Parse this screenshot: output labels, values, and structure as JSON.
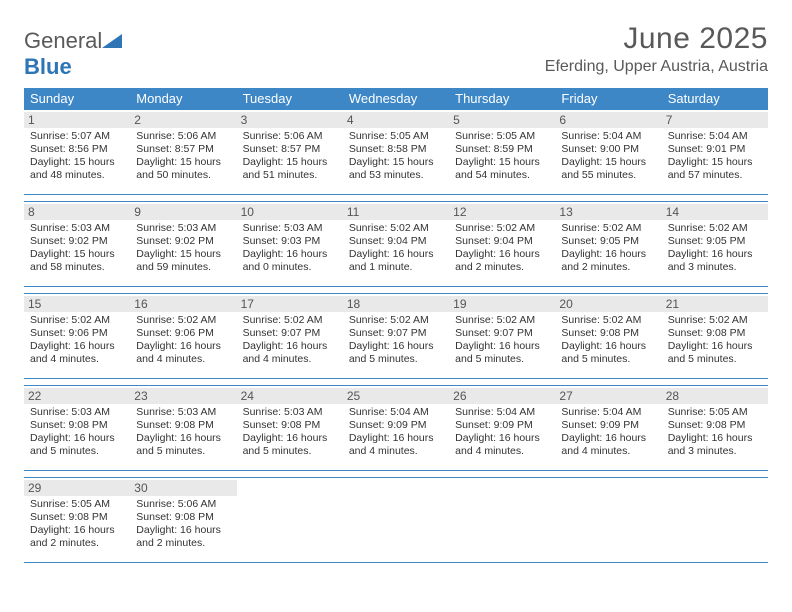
{
  "logo": {
    "text1": "General",
    "text2": "Blue"
  },
  "title": "June 2025",
  "location": "Eferding, Upper Austria, Austria",
  "colors": {
    "header_bg": "#3d87c7",
    "header_text": "#ffffff",
    "rule": "#3d87c7",
    "daynum_bg": "#e9e9e9",
    "text": "#333333",
    "title_text": "#595959"
  },
  "typography": {
    "title_fontsize": 30,
    "location_fontsize": 16,
    "dayheader_fontsize": 13,
    "daynum_fontsize": 12,
    "body_fontsize": 10.5
  },
  "day_names": [
    "Sunday",
    "Monday",
    "Tuesday",
    "Wednesday",
    "Thursday",
    "Friday",
    "Saturday"
  ],
  "weeks": [
    [
      {
        "n": "1",
        "sr": "Sunrise: 5:07 AM",
        "ss": "Sunset: 8:56 PM",
        "d1": "Daylight: 15 hours",
        "d2": "and 48 minutes."
      },
      {
        "n": "2",
        "sr": "Sunrise: 5:06 AM",
        "ss": "Sunset: 8:57 PM",
        "d1": "Daylight: 15 hours",
        "d2": "and 50 minutes."
      },
      {
        "n": "3",
        "sr": "Sunrise: 5:06 AM",
        "ss": "Sunset: 8:57 PM",
        "d1": "Daylight: 15 hours",
        "d2": "and 51 minutes."
      },
      {
        "n": "4",
        "sr": "Sunrise: 5:05 AM",
        "ss": "Sunset: 8:58 PM",
        "d1": "Daylight: 15 hours",
        "d2": "and 53 minutes."
      },
      {
        "n": "5",
        "sr": "Sunrise: 5:05 AM",
        "ss": "Sunset: 8:59 PM",
        "d1": "Daylight: 15 hours",
        "d2": "and 54 minutes."
      },
      {
        "n": "6",
        "sr": "Sunrise: 5:04 AM",
        "ss": "Sunset: 9:00 PM",
        "d1": "Daylight: 15 hours",
        "d2": "and 55 minutes."
      },
      {
        "n": "7",
        "sr": "Sunrise: 5:04 AM",
        "ss": "Sunset: 9:01 PM",
        "d1": "Daylight: 15 hours",
        "d2": "and 57 minutes."
      }
    ],
    [
      {
        "n": "8",
        "sr": "Sunrise: 5:03 AM",
        "ss": "Sunset: 9:02 PM",
        "d1": "Daylight: 15 hours",
        "d2": "and 58 minutes."
      },
      {
        "n": "9",
        "sr": "Sunrise: 5:03 AM",
        "ss": "Sunset: 9:02 PM",
        "d1": "Daylight: 15 hours",
        "d2": "and 59 minutes."
      },
      {
        "n": "10",
        "sr": "Sunrise: 5:03 AM",
        "ss": "Sunset: 9:03 PM",
        "d1": "Daylight: 16 hours",
        "d2": "and 0 minutes."
      },
      {
        "n": "11",
        "sr": "Sunrise: 5:02 AM",
        "ss": "Sunset: 9:04 PM",
        "d1": "Daylight: 16 hours",
        "d2": "and 1 minute."
      },
      {
        "n": "12",
        "sr": "Sunrise: 5:02 AM",
        "ss": "Sunset: 9:04 PM",
        "d1": "Daylight: 16 hours",
        "d2": "and 2 minutes."
      },
      {
        "n": "13",
        "sr": "Sunrise: 5:02 AM",
        "ss": "Sunset: 9:05 PM",
        "d1": "Daylight: 16 hours",
        "d2": "and 2 minutes."
      },
      {
        "n": "14",
        "sr": "Sunrise: 5:02 AM",
        "ss": "Sunset: 9:05 PM",
        "d1": "Daylight: 16 hours",
        "d2": "and 3 minutes."
      }
    ],
    [
      {
        "n": "15",
        "sr": "Sunrise: 5:02 AM",
        "ss": "Sunset: 9:06 PM",
        "d1": "Daylight: 16 hours",
        "d2": "and 4 minutes."
      },
      {
        "n": "16",
        "sr": "Sunrise: 5:02 AM",
        "ss": "Sunset: 9:06 PM",
        "d1": "Daylight: 16 hours",
        "d2": "and 4 minutes."
      },
      {
        "n": "17",
        "sr": "Sunrise: 5:02 AM",
        "ss": "Sunset: 9:07 PM",
        "d1": "Daylight: 16 hours",
        "d2": "and 4 minutes."
      },
      {
        "n": "18",
        "sr": "Sunrise: 5:02 AM",
        "ss": "Sunset: 9:07 PM",
        "d1": "Daylight: 16 hours",
        "d2": "and 5 minutes."
      },
      {
        "n": "19",
        "sr": "Sunrise: 5:02 AM",
        "ss": "Sunset: 9:07 PM",
        "d1": "Daylight: 16 hours",
        "d2": "and 5 minutes."
      },
      {
        "n": "20",
        "sr": "Sunrise: 5:02 AM",
        "ss": "Sunset: 9:08 PM",
        "d1": "Daylight: 16 hours",
        "d2": "and 5 minutes."
      },
      {
        "n": "21",
        "sr": "Sunrise: 5:02 AM",
        "ss": "Sunset: 9:08 PM",
        "d1": "Daylight: 16 hours",
        "d2": "and 5 minutes."
      }
    ],
    [
      {
        "n": "22",
        "sr": "Sunrise: 5:03 AM",
        "ss": "Sunset: 9:08 PM",
        "d1": "Daylight: 16 hours",
        "d2": "and 5 minutes."
      },
      {
        "n": "23",
        "sr": "Sunrise: 5:03 AM",
        "ss": "Sunset: 9:08 PM",
        "d1": "Daylight: 16 hours",
        "d2": "and 5 minutes."
      },
      {
        "n": "24",
        "sr": "Sunrise: 5:03 AM",
        "ss": "Sunset: 9:08 PM",
        "d1": "Daylight: 16 hours",
        "d2": "and 5 minutes."
      },
      {
        "n": "25",
        "sr": "Sunrise: 5:04 AM",
        "ss": "Sunset: 9:09 PM",
        "d1": "Daylight: 16 hours",
        "d2": "and 4 minutes."
      },
      {
        "n": "26",
        "sr": "Sunrise: 5:04 AM",
        "ss": "Sunset: 9:09 PM",
        "d1": "Daylight: 16 hours",
        "d2": "and 4 minutes."
      },
      {
        "n": "27",
        "sr": "Sunrise: 5:04 AM",
        "ss": "Sunset: 9:09 PM",
        "d1": "Daylight: 16 hours",
        "d2": "and 4 minutes."
      },
      {
        "n": "28",
        "sr": "Sunrise: 5:05 AM",
        "ss": "Sunset: 9:08 PM",
        "d1": "Daylight: 16 hours",
        "d2": "and 3 minutes."
      }
    ],
    [
      {
        "n": "29",
        "sr": "Sunrise: 5:05 AM",
        "ss": "Sunset: 9:08 PM",
        "d1": "Daylight: 16 hours",
        "d2": "and 2 minutes."
      },
      {
        "n": "30",
        "sr": "Sunrise: 5:06 AM",
        "ss": "Sunset: 9:08 PM",
        "d1": "Daylight: 16 hours",
        "d2": "and 2 minutes."
      },
      null,
      null,
      null,
      null,
      null
    ]
  ]
}
